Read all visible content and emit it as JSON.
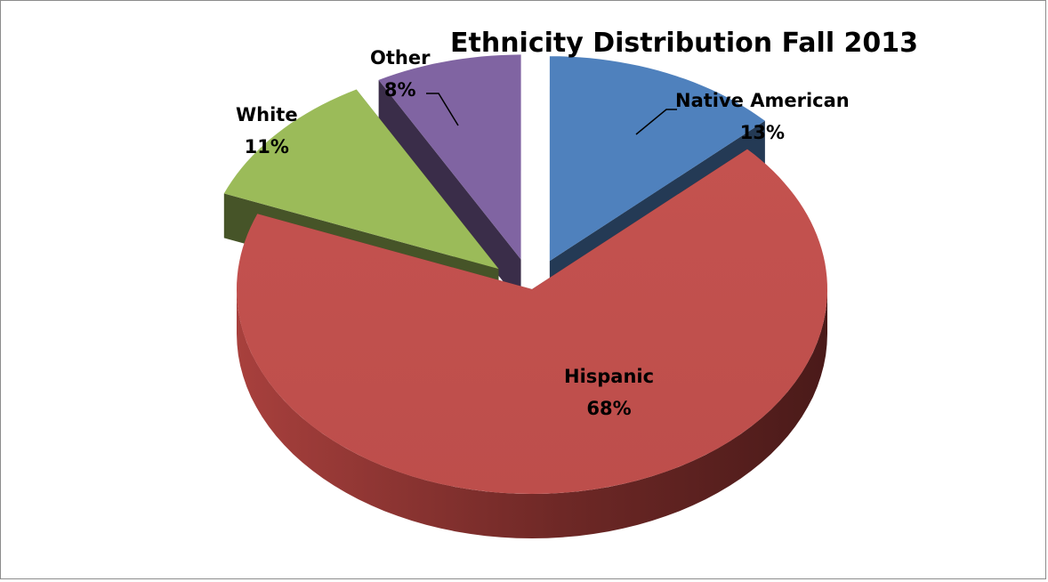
{
  "chart_data": {
    "type": "pie",
    "title": "Ethnicity Distribution Fall 2013",
    "categories": [
      "Native American",
      "Hispanic",
      "White",
      "Other"
    ],
    "values": [
      13,
      68,
      11,
      8
    ],
    "value_labels": [
      "13%",
      "68%",
      "11%",
      "8%"
    ],
    "colors": [
      "#4F81BD",
      "#C0504D",
      "#9BBB59",
      "#8064A2"
    ],
    "style": "3d-exploded-pie"
  }
}
